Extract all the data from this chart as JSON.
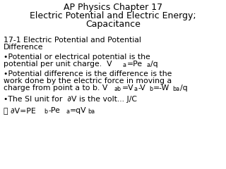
{
  "background_color": "#ffffff",
  "title_line1": "AP Physics Chapter 17",
  "title_line2": "Electric Potential and Electric Energy;",
  "title_line3": "Capacitance",
  "title_fontsize": 9.0,
  "body_fontsize": 7.8,
  "sub_fontsize": 5.8
}
